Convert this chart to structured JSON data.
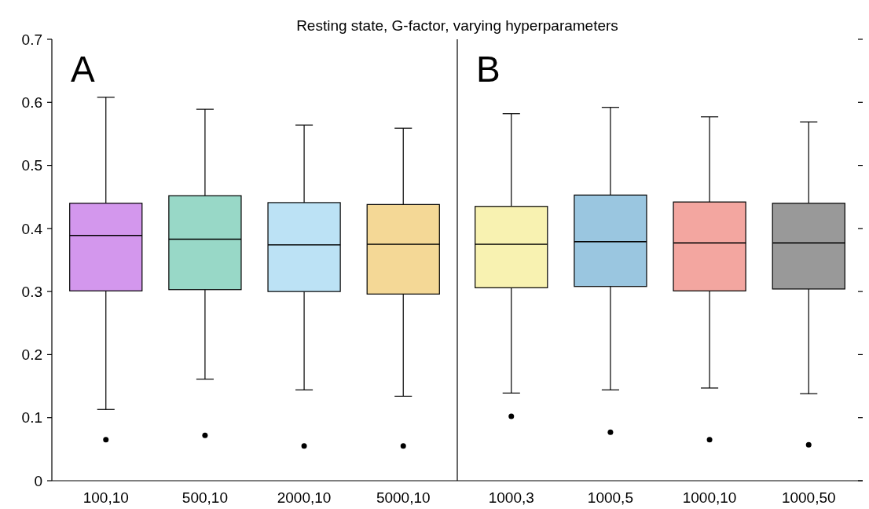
{
  "chart_data": [
    {
      "type": "box",
      "title": "Resting state, G-factor, varying hyperparameters",
      "annotations": [
        "A"
      ],
      "categories": [
        "100,10",
        "500,10",
        "2000,10",
        "5000,10"
      ],
      "colors": [
        "#d397ed",
        "#98d8c7",
        "#bce2f5",
        "#f4d896"
      ],
      "ylim": [
        0,
        0.7
      ],
      "yticks": [
        0,
        0.1,
        0.2,
        0.3,
        0.4,
        0.5,
        0.6,
        0.7
      ],
      "boxes": [
        {
          "low": 0.113,
          "q1": 0.301,
          "median": 0.389,
          "q3": 0.44,
          "high": 0.608,
          "outliers": [
            0.065
          ]
        },
        {
          "low": 0.161,
          "q1": 0.303,
          "median": 0.383,
          "q3": 0.452,
          "high": 0.589,
          "outliers": [
            0.072
          ]
        },
        {
          "low": 0.144,
          "q1": 0.3,
          "median": 0.374,
          "q3": 0.441,
          "high": 0.564,
          "outliers": [
            0.055
          ]
        },
        {
          "low": 0.134,
          "q1": 0.296,
          "median": 0.375,
          "q3": 0.438,
          "high": 0.559,
          "outliers": [
            0.055
          ]
        }
      ]
    },
    {
      "type": "box",
      "annotations": [
        "B"
      ],
      "tick_labels": "x",
      "categories": [
        "1000,3",
        "1000,5",
        "1000,10",
        "1000,50"
      ],
      "colors": [
        "#f8f2b1",
        "#9ac6e0",
        "#f3a6a0",
        "#999999"
      ],
      "ylim": [
        0,
        0.7
      ],
      "yticks": [
        0,
        0.1,
        0.2,
        0.3,
        0.4,
        0.5,
        0.6,
        0.7
      ],
      "boxes": [
        {
          "low": 0.139,
          "q1": 0.306,
          "median": 0.375,
          "q3": 0.435,
          "high": 0.582,
          "outliers": [
            0.102
          ]
        },
        {
          "low": 0.144,
          "q1": 0.308,
          "median": 0.379,
          "q3": 0.453,
          "high": 0.592,
          "outliers": [
            0.077
          ]
        },
        {
          "low": 0.147,
          "q1": 0.301,
          "median": 0.377,
          "q3": 0.442,
          "high": 0.577,
          "outliers": [
            0.065
          ]
        },
        {
          "low": 0.138,
          "q1": 0.304,
          "median": 0.377,
          "q3": 0.44,
          "high": 0.569,
          "outliers": [
            0.057
          ]
        }
      ]
    }
  ]
}
